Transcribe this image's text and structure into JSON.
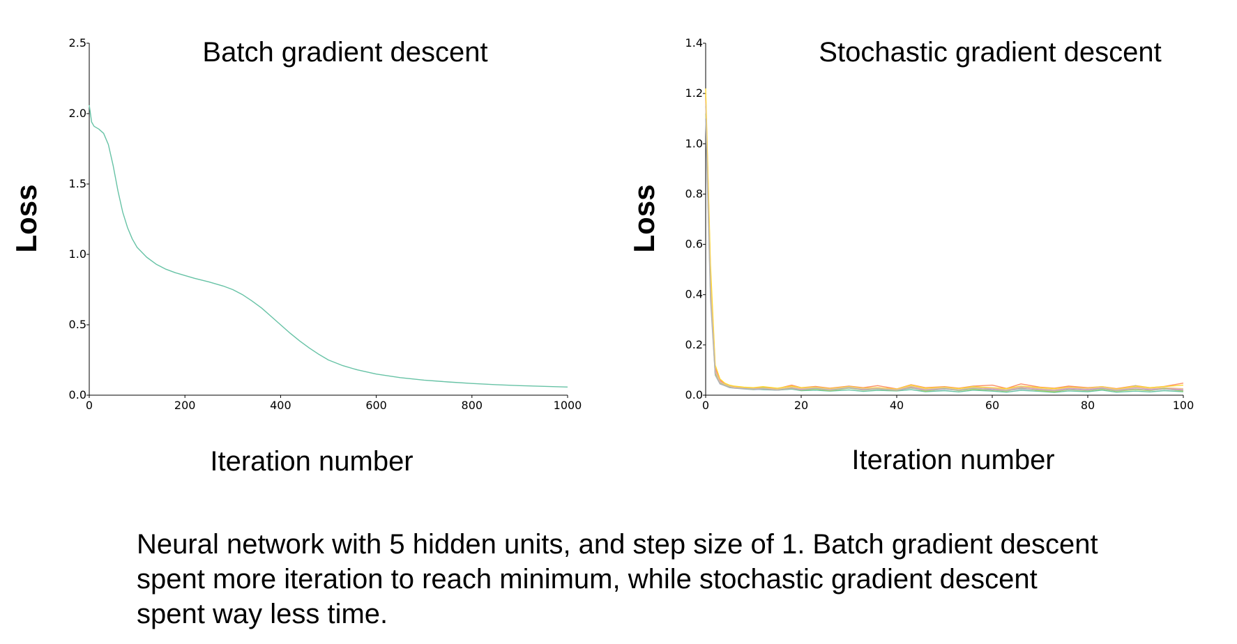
{
  "chart_data": [
    {
      "type": "line",
      "title": "Batch gradient descent",
      "xlabel": "Iteration number",
      "ylabel": "Loss",
      "xlim": [
        0,
        1000
      ],
      "ylim": [
        0,
        2.5
      ],
      "xticks": [
        "0",
        "200",
        "400",
        "600",
        "800",
        "1000"
      ],
      "yticks": [
        "0.0",
        "0.5",
        "1.0",
        "1.5",
        "2.0",
        "2.5"
      ],
      "grid": false,
      "series": [
        {
          "color": "#66c2a5",
          "x": [
            0,
            5,
            10,
            20,
            30,
            40,
            50,
            60,
            70,
            80,
            90,
            100,
            120,
            140,
            160,
            180,
            200,
            220,
            250,
            280,
            300,
            320,
            340,
            360,
            380,
            400,
            420,
            440,
            460,
            480,
            500,
            530,
            560,
            600,
            650,
            700,
            750,
            800,
            850,
            900,
            950,
            1000
          ],
          "y": [
            2.06,
            1.94,
            1.91,
            1.89,
            1.86,
            1.78,
            1.63,
            1.45,
            1.3,
            1.19,
            1.11,
            1.05,
            0.98,
            0.93,
            0.895,
            0.87,
            0.85,
            0.83,
            0.805,
            0.775,
            0.75,
            0.715,
            0.67,
            0.62,
            0.56,
            0.5,
            0.44,
            0.385,
            0.335,
            0.29,
            0.25,
            0.21,
            0.18,
            0.15,
            0.125,
            0.107,
            0.094,
            0.083,
            0.075,
            0.068,
            0.063,
            0.058
          ]
        }
      ]
    },
    {
      "type": "line",
      "title": "Stochastic gradient descent",
      "xlabel": "Iteration number",
      "ylabel": "Loss",
      "xlim": [
        0,
        100
      ],
      "ylim": [
        0,
        1.4
      ],
      "xticks": [
        "0",
        "20",
        "40",
        "60",
        "80",
        "100"
      ],
      "yticks": [
        "0.0",
        "0.2",
        "0.4",
        "0.6",
        "0.8",
        "1.0",
        "1.2",
        "1.4"
      ],
      "grid": false,
      "series": [
        {
          "color": "#66c2a5",
          "x": [
            0,
            1,
            2,
            3,
            4,
            5,
            6,
            8,
            10,
            12,
            15,
            18,
            20,
            23,
            26,
            30,
            33,
            36,
            40,
            43,
            46,
            50,
            53,
            56,
            60,
            63,
            66,
            70,
            73,
            76,
            80,
            83,
            86,
            90,
            93,
            96,
            100
          ],
          "y": [
            1.19,
            0.45,
            0.09,
            0.05,
            0.04,
            0.032,
            0.03,
            0.028,
            0.025,
            0.022,
            0.02,
            0.024,
            0.018,
            0.02,
            0.016,
            0.021,
            0.015,
            0.019,
            0.017,
            0.022,
            0.014,
            0.018,
            0.013,
            0.02,
            0.016,
            0.012,
            0.019,
            0.015,
            0.011,
            0.017,
            0.014,
            0.02,
            0.012,
            0.016,
            0.013,
            0.018,
            0.014
          ]
        },
        {
          "color": "#fc8d62",
          "x": [
            0,
            1,
            2,
            3,
            4,
            5,
            6,
            8,
            10,
            12,
            15,
            18,
            20,
            23,
            26,
            30,
            33,
            36,
            40,
            43,
            46,
            50,
            53,
            56,
            60,
            63,
            66,
            70,
            73,
            76,
            80,
            83,
            86,
            90,
            93,
            96,
            100
          ],
          "y": [
            1.2,
            0.5,
            0.11,
            0.06,
            0.045,
            0.038,
            0.035,
            0.03,
            0.028,
            0.032,
            0.026,
            0.04,
            0.03,
            0.035,
            0.028,
            0.036,
            0.03,
            0.038,
            0.025,
            0.042,
            0.03,
            0.034,
            0.028,
            0.036,
            0.04,
            0.027,
            0.045,
            0.032,
            0.028,
            0.036,
            0.03,
            0.034,
            0.026,
            0.038,
            0.03,
            0.035,
            0.048
          ]
        },
        {
          "color": "#8da0cb",
          "x": [
            0,
            1,
            2,
            3,
            4,
            5,
            6,
            8,
            10,
            12,
            15,
            18,
            20,
            23,
            26,
            30,
            33,
            36,
            40,
            43,
            46,
            50,
            53,
            56,
            60,
            63,
            66,
            70,
            73,
            76,
            80,
            83,
            86,
            90,
            93,
            96,
            100
          ],
          "y": [
            1.15,
            0.42,
            0.08,
            0.045,
            0.038,
            0.03,
            0.028,
            0.025,
            0.022,
            0.024,
            0.02,
            0.028,
            0.022,
            0.03,
            0.02,
            0.035,
            0.022,
            0.026,
            0.02,
            0.03,
            0.018,
            0.024,
            0.02,
            0.035,
            0.022,
            0.018,
            0.025,
            0.02,
            0.016,
            0.024,
            0.02,
            0.028,
            0.018,
            0.038,
            0.02,
            0.025,
            0.02
          ]
        },
        {
          "color": "#e78ac3",
          "x": [
            0,
            1,
            2,
            3,
            4,
            5,
            6,
            8,
            10,
            12,
            15,
            18,
            20,
            23,
            26,
            30,
            33,
            36,
            40,
            43,
            46,
            50,
            53,
            56,
            60,
            63,
            66,
            70,
            73,
            76,
            80,
            83,
            86,
            90,
            93,
            96,
            100
          ],
          "y": [
            1.18,
            0.47,
            0.1,
            0.055,
            0.042,
            0.035,
            0.03,
            0.027,
            0.024,
            0.026,
            0.022,
            0.03,
            0.024,
            0.028,
            0.022,
            0.03,
            0.024,
            0.03,
            0.02,
            0.034,
            0.022,
            0.028,
            0.02,
            0.03,
            0.026,
            0.02,
            0.032,
            0.024,
            0.02,
            0.028,
            0.024,
            0.03,
            0.02,
            0.03,
            0.024,
            0.028,
            0.022
          ]
        },
        {
          "color": "#a6d854",
          "x": [
            0,
            1,
            2,
            3,
            4,
            5,
            6,
            8,
            10,
            12,
            15,
            18,
            20,
            23,
            26,
            30,
            33,
            36,
            40,
            43,
            46,
            50,
            53,
            56,
            60,
            63,
            66,
            70,
            73,
            76,
            80,
            83,
            86,
            90,
            93,
            96,
            100
          ],
          "y": [
            1.12,
            0.4,
            0.085,
            0.048,
            0.04,
            0.033,
            0.029,
            0.026,
            0.023,
            0.03,
            0.021,
            0.027,
            0.02,
            0.025,
            0.018,
            0.028,
            0.02,
            0.024,
            0.018,
            0.03,
            0.016,
            0.026,
            0.018,
            0.024,
            0.02,
            0.016,
            0.028,
            0.018,
            0.014,
            0.022,
            0.018,
            0.024,
            0.016,
            0.022,
            0.018,
            0.026,
            0.016
          ]
        },
        {
          "color": "#ffd92f",
          "x": [
            0,
            1,
            2,
            3,
            4,
            5,
            6,
            8,
            10,
            12,
            15,
            18,
            20,
            23,
            26,
            30,
            33,
            36,
            40,
            43,
            46,
            50,
            53,
            56,
            60,
            63,
            66,
            70,
            73,
            76,
            80,
            83,
            86,
            90,
            93,
            96,
            100
          ],
          "y": [
            1.22,
            0.52,
            0.12,
            0.065,
            0.048,
            0.04,
            0.036,
            0.032,
            0.03,
            0.034,
            0.028,
            0.036,
            0.03,
            0.032,
            0.026,
            0.034,
            0.028,
            0.03,
            0.024,
            0.04,
            0.028,
            0.032,
            0.026,
            0.034,
            0.03,
            0.026,
            0.036,
            0.03,
            0.026,
            0.032,
            0.028,
            0.034,
            0.024,
            0.036,
            0.03,
            0.034,
            0.04
          ]
        },
        {
          "color": "#e5c494",
          "x": [
            0,
            1,
            2,
            3,
            4,
            5,
            6,
            8,
            10,
            12,
            15,
            18,
            20,
            23,
            26,
            30,
            33,
            36,
            40,
            43,
            46,
            50,
            53,
            56,
            60,
            63,
            66,
            70,
            73,
            76,
            80,
            83,
            86,
            90,
            93,
            96,
            100
          ],
          "y": [
            1.16,
            0.44,
            0.095,
            0.052,
            0.043,
            0.036,
            0.031,
            0.028,
            0.026,
            0.028,
            0.024,
            0.032,
            0.026,
            0.03,
            0.024,
            0.032,
            0.026,
            0.028,
            0.022,
            0.036,
            0.024,
            0.03,
            0.022,
            0.03,
            0.028,
            0.022,
            0.034,
            0.026,
            0.022,
            0.03,
            0.026,
            0.032,
            0.022,
            0.032,
            0.026,
            0.03,
            0.026
          ]
        },
        {
          "color": "#b3b3b3",
          "x": [
            0,
            1,
            2,
            3,
            4,
            5,
            6,
            8,
            10,
            12,
            15,
            18,
            20,
            23,
            26,
            30,
            33,
            36,
            40,
            43,
            46,
            50,
            53,
            56,
            60,
            63,
            66,
            70,
            73,
            76,
            80,
            83,
            86,
            90,
            93,
            96,
            100
          ],
          "y": [
            1.1,
            0.38,
            0.08,
            0.046,
            0.038,
            0.031,
            0.028,
            0.026,
            0.024,
            0.025,
            0.02,
            0.026,
            0.021,
            0.027,
            0.02,
            0.029,
            0.021,
            0.025,
            0.019,
            0.028,
            0.019,
            0.025,
            0.019,
            0.027,
            0.021,
            0.018,
            0.026,
            0.021,
            0.017,
            0.023,
            0.019,
            0.026,
            0.018,
            0.025,
            0.02,
            0.024,
            0.019
          ]
        }
      ]
    }
  ],
  "caption": {
    "line1": "Neural network with 5 hidden units, and step size of 1. Batch gradient descent",
    "line2": "spent more iteration to reach minimum, while stochastic gradient descent",
    "line3": "spent way less time."
  }
}
